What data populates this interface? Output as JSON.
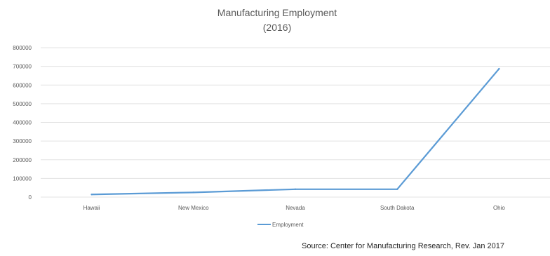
{
  "chart_data": {
    "type": "line",
    "title": "Manufacturing Employment",
    "subtitle": "(2016)",
    "categories": [
      "Hawaii",
      "New Mexico",
      "Nevada",
      "South Dakota",
      "Ohio"
    ],
    "series": [
      {
        "name": "Employment",
        "values": [
          14000,
          25000,
          42000,
          42000,
          687000
        ],
        "color": "#5b9bd5"
      }
    ],
    "yticks": [
      "0",
      "100000",
      "200000",
      "300000",
      "400000",
      "500000",
      "600000",
      "700000",
      "800000"
    ],
    "ylim": [
      0,
      800000
    ],
    "grid": true,
    "legend_position": "bottom"
  },
  "source_text": "Source:  Center for Manufacturing Research, Rev. Jan 2017"
}
